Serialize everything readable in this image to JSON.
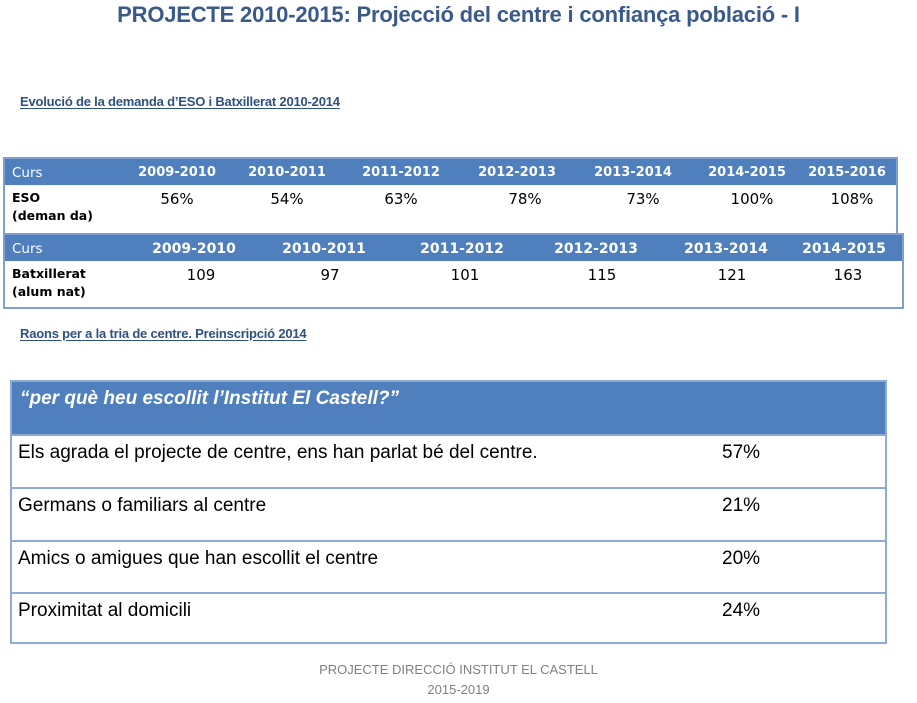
{
  "title": "PROJECTE 2010-2015: Projecció del centre i confiança població - I",
  "section1_heading": "Evolució de la demanda d’ESO i Batxillerat 2010-2014",
  "eso_table": {
    "header_label": "Curs",
    "years": [
      "2009-2010",
      "2010-2011",
      "2011-2012",
      "2012-2013",
      "2013-2014",
      "2014-2015",
      "2015-2016"
    ],
    "row_label_line1": "ESO",
    "row_label_line2": "(deman da)",
    "values": [
      "56%",
      "54%",
      "63%",
      "78%",
      "73%",
      "100%",
      "108%"
    ]
  },
  "batx_table": {
    "header_label": "Curs",
    "years": [
      "2009-2010",
      "2010-2011",
      "2011-2012",
      "2012-2013",
      "2013-2014",
      "2014-2015"
    ],
    "row_label_line1": "Batxillerat",
    "row_label_line2": "(alum nat)",
    "values": [
      "109",
      "97",
      "101",
      "115",
      "121",
      "163"
    ]
  },
  "section2_heading": "Raons per a la tria de centre. Preinscripció 2014",
  "reasons_table": {
    "question": "“per què heu escollit l’Institut El Castell?”",
    "rows": [
      {
        "reason": "Els agrada el projecte de centre, ens han parlat bé del centre.",
        "percent": "57%"
      },
      {
        "reason": "Germans o familiars al centre",
        "percent": "21%"
      },
      {
        "reason": "Amics o amigues que han escollit el centre",
        "percent": "20%"
      },
      {
        "reason": "Proximitat al domicili",
        "percent": "24%"
      }
    ]
  },
  "footer": {
    "line1": "PROJECTE DIRECCIÓ INSTITUT EL CASTELL",
    "line2": "2015-2019"
  },
  "colors": {
    "title": "#3b5a8c",
    "header_fill": "#4f7fbd",
    "border": "#8eaad6",
    "footer_text": "#7f7f7f"
  }
}
